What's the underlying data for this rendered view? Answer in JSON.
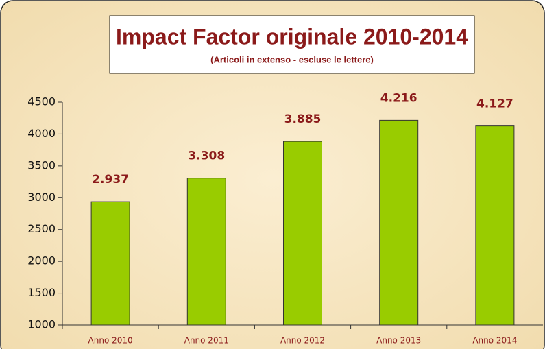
{
  "chart_data": {
    "type": "bar",
    "title": "Impact Factor originale 2010-2014",
    "subtitle": "(Articoli in extenso - escluse le lettere)",
    "categories": [
      "Anno 2010",
      "Anno 2011",
      "Anno 2012",
      "Anno 2013",
      "Anno 2014"
    ],
    "values": [
      2937,
      3308,
      3885,
      4216,
      4127
    ],
    "value_labels": [
      "2.937",
      "3.308",
      "3.885",
      "4.216",
      "4.127"
    ],
    "color": "#99cc00",
    "ylim": [
      1000,
      4500
    ],
    "yticks": [
      1000,
      1500,
      2000,
      2500,
      3000,
      3500,
      4000,
      4500
    ],
    "grid": false
  }
}
